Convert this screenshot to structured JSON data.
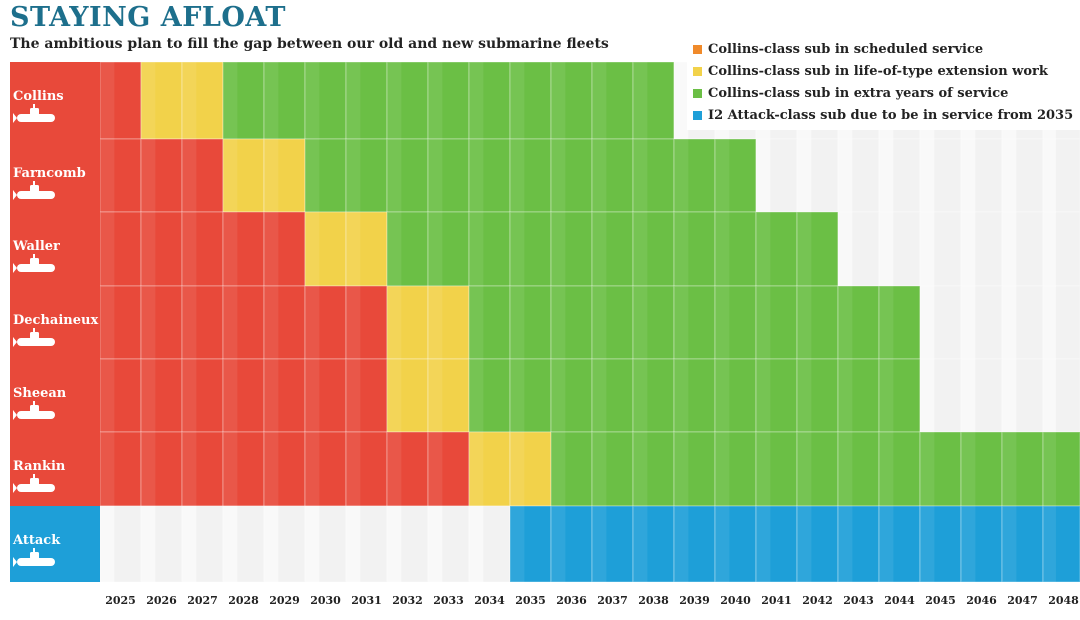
{
  "title": "STAYING AFLOAT",
  "subtitle": "The ambitious plan to fill the gap between our old and new submarine fleets",
  "colors": {
    "scheduled": "#e8493a",
    "extension": "#f2d24a",
    "extra": "#6bbf45",
    "attack": "#1e9fd8",
    "empty": "#f2f2f2"
  },
  "legend": [
    {
      "key": "scheduled",
      "label": "Collins-class sub in scheduled service",
      "color": "#f08a2a"
    },
    {
      "key": "extension",
      "label": "Collins-class sub in life-of-type extension work",
      "color": "#f2d24a"
    },
    {
      "key": "extra",
      "label": "Collins-class sub in extra years of service",
      "color": "#6bbf45"
    },
    {
      "key": "attack",
      "label": "I2 Attack-class sub due to be in service from 2035",
      "color": "#1e9fd8"
    }
  ],
  "chart_data": {
    "type": "heatmap",
    "years": [
      "2025",
      "2026",
      "2027",
      "2028",
      "2029",
      "2030",
      "2031",
      "2032",
      "2033",
      "2034",
      "2035",
      "2036",
      "2037",
      "2038",
      "2039",
      "2040",
      "2041",
      "2042",
      "2043",
      "2044",
      "2045",
      "2046",
      "2047",
      "2048"
    ],
    "rows": [
      {
        "name": "Collins",
        "label_color": "#e8493a",
        "scheduled": 1,
        "extension": 2,
        "extra": 11
      },
      {
        "name": "Farncomb",
        "label_color": "#e8493a",
        "scheduled": 3,
        "extension": 2,
        "extra": 11
      },
      {
        "name": "Waller",
        "label_color": "#e8493a",
        "scheduled": 5,
        "extension": 2,
        "extra": 11
      },
      {
        "name": "Dechaineux",
        "label_color": "#e8493a",
        "scheduled": 7,
        "extension": 2,
        "extra": 11
      },
      {
        "name": "Sheean",
        "label_color": "#e8493a",
        "scheduled": 7,
        "extension": 2,
        "extra": 11
      },
      {
        "name": "Rankin",
        "label_color": "#e8493a",
        "scheduled": 9,
        "extension": 2,
        "extra": 13
      },
      {
        "name": "Attack",
        "label_color": "#1e9fd8",
        "empty_before": 10,
        "attack": 14
      }
    ]
  }
}
